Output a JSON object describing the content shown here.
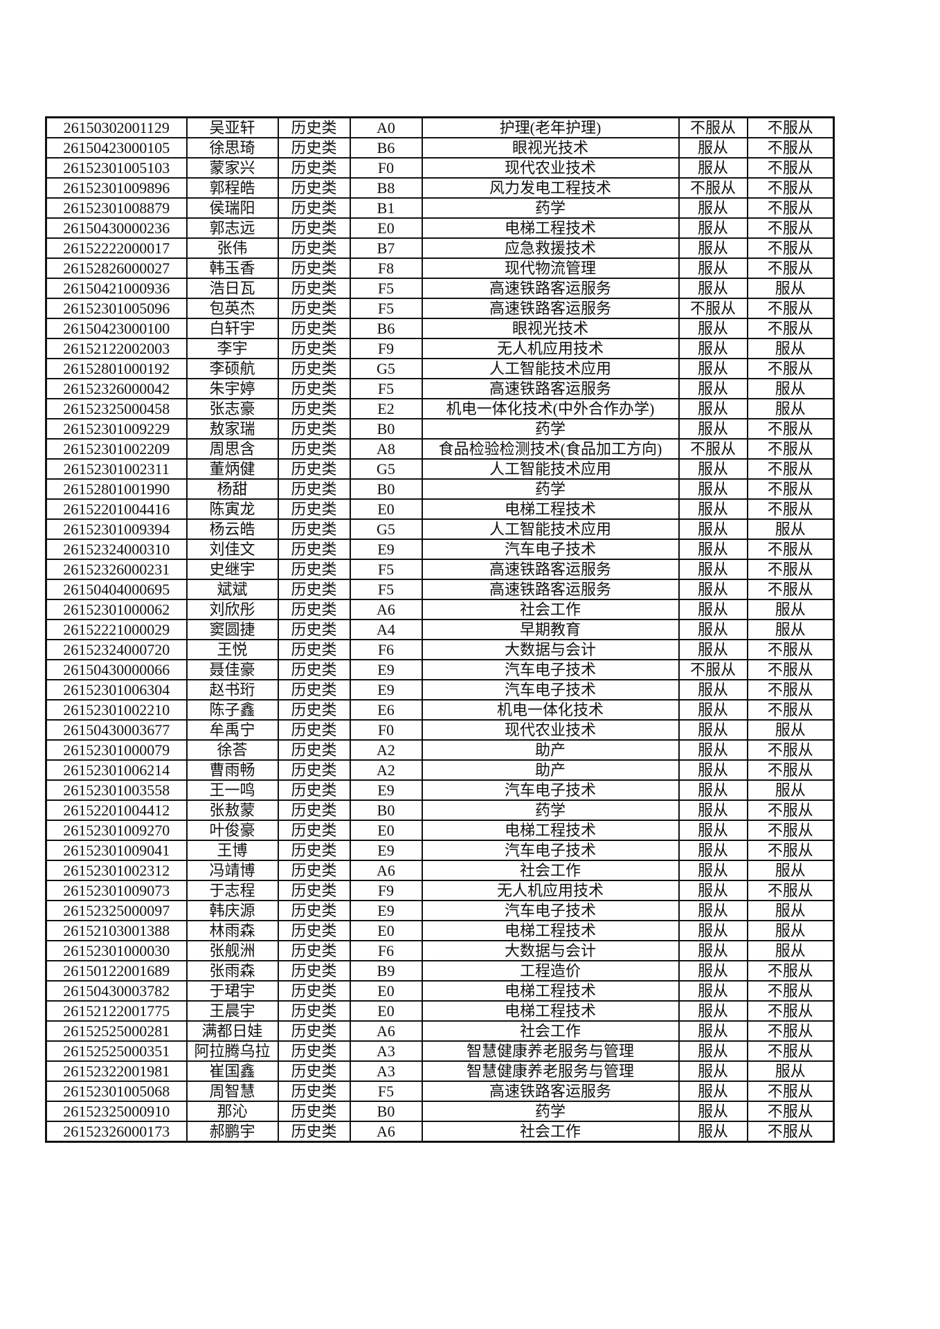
{
  "table": {
    "rows": [
      [
        "26150302001129",
        "吴亚轩",
        "历史类",
        "A0",
        "护理(老年护理)",
        "不服从",
        "不服从"
      ],
      [
        "26150423000105",
        "徐思琦",
        "历史类",
        "B6",
        "眼视光技术",
        "服从",
        "不服从"
      ],
      [
        "26152301005103",
        "蒙家兴",
        "历史类",
        "F0",
        "现代农业技术",
        "服从",
        "不服从"
      ],
      [
        "26152301009896",
        "郭程皓",
        "历史类",
        "B8",
        "风力发电工程技术",
        "不服从",
        "不服从"
      ],
      [
        "26152301008879",
        "侯瑞阳",
        "历史类",
        "B1",
        "药学",
        "服从",
        "不服从"
      ],
      [
        "26150430000236",
        "郭志远",
        "历史类",
        "E0",
        "电梯工程技术",
        "服从",
        "不服从"
      ],
      [
        "26152222000017",
        "张伟",
        "历史类",
        "B7",
        "应急救援技术",
        "服从",
        "不服从"
      ],
      [
        "26152826000027",
        "韩玉香",
        "历史类",
        "F8",
        "现代物流管理",
        "服从",
        "不服从"
      ],
      [
        "26150421000936",
        "浩日瓦",
        "历史类",
        "F5",
        "高速铁路客运服务",
        "服从",
        "服从"
      ],
      [
        "26152301005096",
        "包英杰",
        "历史类",
        "F5",
        "高速铁路客运服务",
        "不服从",
        "不服从"
      ],
      [
        "26150423000100",
        "白轩宇",
        "历史类",
        "B6",
        "眼视光技术",
        "服从",
        "不服从"
      ],
      [
        "26152122002003",
        "李宇",
        "历史类",
        "F9",
        "无人机应用技术",
        "服从",
        "服从"
      ],
      [
        "26152801000192",
        "李硕航",
        "历史类",
        "G5",
        "人工智能技术应用",
        "服从",
        "不服从"
      ],
      [
        "26152326000042",
        "朱宇婷",
        "历史类",
        "F5",
        "高速铁路客运服务",
        "服从",
        "服从"
      ],
      [
        "26152325000458",
        "张志豪",
        "历史类",
        "E2",
        "机电一体化技术(中外合作办学)",
        "服从",
        "服从"
      ],
      [
        "26152301009229",
        "敖家瑞",
        "历史类",
        "B0",
        "药学",
        "服从",
        "不服从"
      ],
      [
        "26152301002209",
        "周思含",
        "历史类",
        "A8",
        "食品检验检测技术(食品加工方向)",
        "不服从",
        "不服从"
      ],
      [
        "26152301002311",
        "董炳健",
        "历史类",
        "G5",
        "人工智能技术应用",
        "服从",
        "不服从"
      ],
      [
        "26152801001990",
        "杨甜",
        "历史类",
        "B0",
        "药学",
        "服从",
        "不服从"
      ],
      [
        "26152201004416",
        "陈寅龙",
        "历史类",
        "E0",
        "电梯工程技术",
        "服从",
        "不服从"
      ],
      [
        "26152301009394",
        "杨云皓",
        "历史类",
        "G5",
        "人工智能技术应用",
        "服从",
        "服从"
      ],
      [
        "26152324000310",
        "刘佳文",
        "历史类",
        "E9",
        "汽车电子技术",
        "服从",
        "不服从"
      ],
      [
        "26152326000231",
        "史继宇",
        "历史类",
        "F5",
        "高速铁路客运服务",
        "服从",
        "不服从"
      ],
      [
        "26150404000695",
        "斌斌",
        "历史类",
        "F5",
        "高速铁路客运服务",
        "服从",
        "不服从"
      ],
      [
        "26152301000062",
        "刘欣彤",
        "历史类",
        "A6",
        "社会工作",
        "服从",
        "服从"
      ],
      [
        "26152221000029",
        "窦圆捷",
        "历史类",
        "A4",
        "早期教育",
        "服从",
        "服从"
      ],
      [
        "26152324000720",
        "王悦",
        "历史类",
        "F6",
        "大数据与会计",
        "服从",
        "不服从"
      ],
      [
        "26150430000066",
        "聂佳豪",
        "历史类",
        "E9",
        "汽车电子技术",
        "不服从",
        "不服从"
      ],
      [
        "26152301006304",
        "赵书珩",
        "历史类",
        "E9",
        "汽车电子技术",
        "服从",
        "不服从"
      ],
      [
        "26152301002210",
        "陈子鑫",
        "历史类",
        "E6",
        "机电一体化技术",
        "服从",
        "不服从"
      ],
      [
        "26150430003677",
        "牟禹宁",
        "历史类",
        "F0",
        "现代农业技术",
        "服从",
        "服从"
      ],
      [
        "26152301000079",
        "徐荅",
        "历史类",
        "A2",
        "助产",
        "服从",
        "不服从"
      ],
      [
        "26152301006214",
        "曹雨畅",
        "历史类",
        "A2",
        "助产",
        "服从",
        "不服从"
      ],
      [
        "26152301003558",
        "王一鸣",
        "历史类",
        "E9",
        "汽车电子技术",
        "服从",
        "服从"
      ],
      [
        "26152201004412",
        "张敖蒙",
        "历史类",
        "B0",
        "药学",
        "服从",
        "不服从"
      ],
      [
        "26152301009270",
        "叶俊豪",
        "历史类",
        "E0",
        "电梯工程技术",
        "服从",
        "不服从"
      ],
      [
        "26152301009041",
        "王博",
        "历史类",
        "E9",
        "汽车电子技术",
        "服从",
        "不服从"
      ],
      [
        "26152301002312",
        "冯靖博",
        "历史类",
        "A6",
        "社会工作",
        "服从",
        "服从"
      ],
      [
        "26152301009073",
        "于志程",
        "历史类",
        "F9",
        "无人机应用技术",
        "服从",
        "不服从"
      ],
      [
        "26152325000097",
        "韩庆源",
        "历史类",
        "E9",
        "汽车电子技术",
        "服从",
        "服从"
      ],
      [
        "26152103001388",
        "林雨森",
        "历史类",
        "E0",
        "电梯工程技术",
        "服从",
        "服从"
      ],
      [
        "26152301000030",
        "张舰洲",
        "历史类",
        "F6",
        "大数据与会计",
        "服从",
        "服从"
      ],
      [
        "26150122001689",
        "张雨森",
        "历史类",
        "B9",
        "工程造价",
        "服从",
        "不服从"
      ],
      [
        "26150430003782",
        "于珺宇",
        "历史类",
        "E0",
        "电梯工程技术",
        "服从",
        "不服从"
      ],
      [
        "26152122001775",
        "王晨宇",
        "历史类",
        "E0",
        "电梯工程技术",
        "服从",
        "不服从"
      ],
      [
        "26152525000281",
        "满都日娃",
        "历史类",
        "A6",
        "社会工作",
        "服从",
        "不服从"
      ],
      [
        "26152525000351",
        "阿拉腾乌拉",
        "历史类",
        "A3",
        "智慧健康养老服务与管理",
        "服从",
        "不服从"
      ],
      [
        "26152322001981",
        "崔国鑫",
        "历史类",
        "A3",
        "智慧健康养老服务与管理",
        "服从",
        "服从"
      ],
      [
        "26152301005068",
        "周智慧",
        "历史类",
        "F5",
        "高速铁路客运服务",
        "服从",
        "不服从"
      ],
      [
        "26152325000910",
        "那沁",
        "历史类",
        "B0",
        "药学",
        "服从",
        "不服从"
      ],
      [
        "26152326000173",
        "郝鹏宇",
        "历史类",
        "A6",
        "社会工作",
        "服从",
        "不服从"
      ]
    ]
  }
}
